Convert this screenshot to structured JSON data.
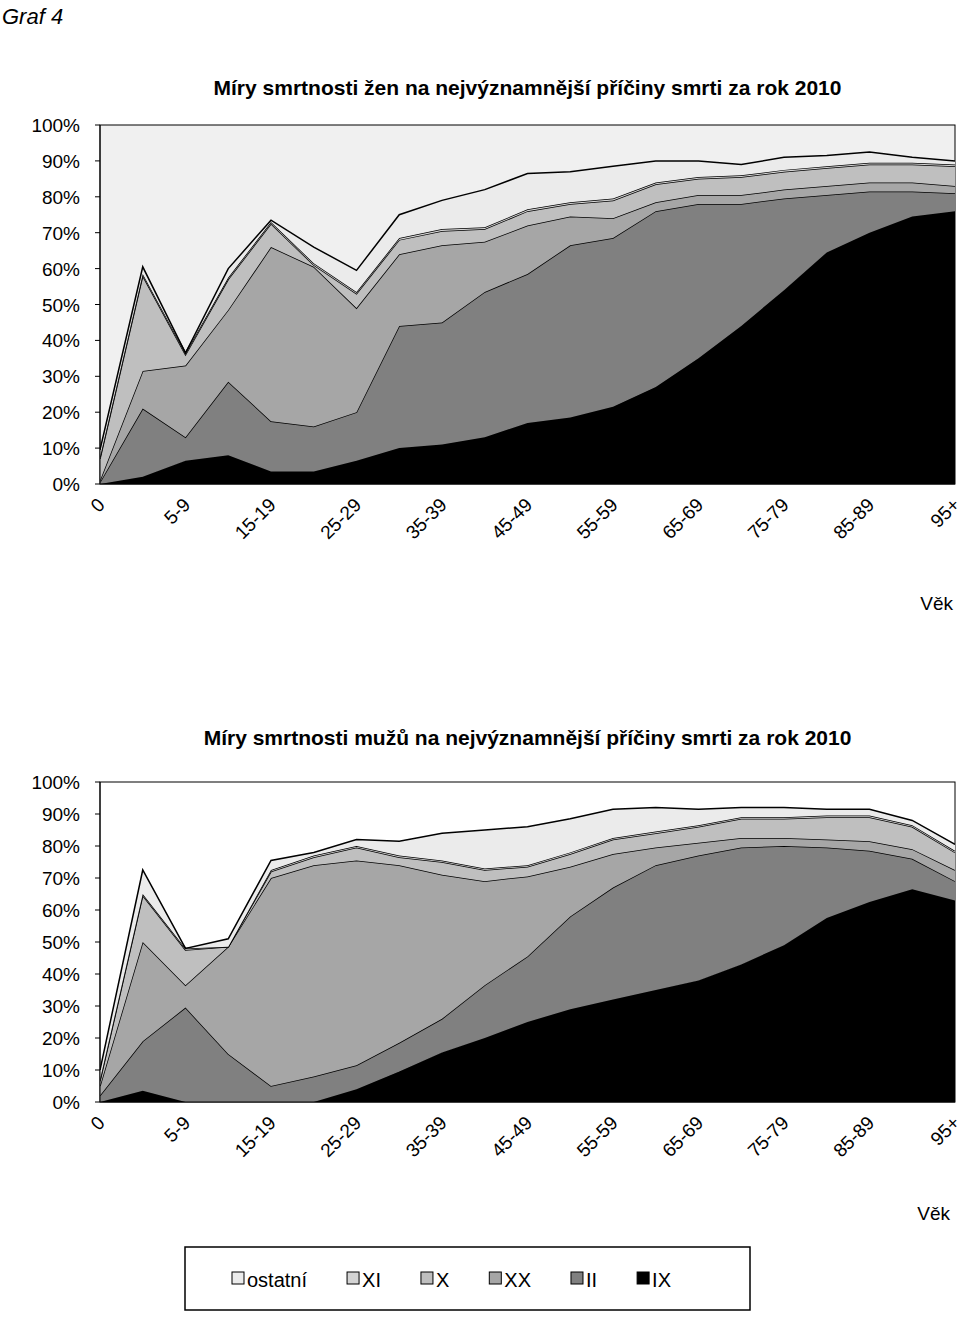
{
  "page_label": "Graf 4",
  "chart_data": [
    {
      "type": "area",
      "stacked": true,
      "title": "Míry smrtnosti  žen na nejvýznamnější  příčiny smrti  za rok 2010",
      "x_label": "Věk",
      "categories": [
        "0",
        null,
        "5-9",
        null,
        "15-19",
        null,
        "25-29",
        null,
        "35-39",
        null,
        "45-49",
        null,
        "55-59",
        null,
        "65-69",
        null,
        "75-79",
        null,
        "85-89",
        null,
        "95+"
      ],
      "series": [
        {
          "name": "IX",
          "color": "#000000",
          "values": [
            0,
            2,
            6.5,
            8,
            3.5,
            3.5,
            6.5,
            10,
            11,
            13,
            17,
            18.5,
            21.5,
            27,
            35,
            44,
            54,
            64.5,
            70,
            74.5,
            76
          ]
        },
        {
          "name": "II",
          "color": "#808080",
          "values": [
            0.5,
            19,
            6.5,
            20.5,
            14,
            12.5,
            13.5,
            34,
            34,
            40.5,
            41.5,
            48,
            47,
            49,
            43,
            34,
            25.5,
            16,
            11.5,
            7,
            5
          ]
        },
        {
          "name": "XX",
          "color": "#a6a6a6",
          "values": [
            0.5,
            10.5,
            20,
            20,
            48.5,
            44.5,
            29,
            20,
            21.5,
            14,
            13.5,
            8,
            5.5,
            2.5,
            2.5,
            2.5,
            2.5,
            2.5,
            2.5,
            2.5,
            2
          ]
        },
        {
          "name": "X",
          "color": "#bfbfbf",
          "values": [
            6,
            26.5,
            3,
            8.5,
            6.5,
            0.5,
            4,
            4,
            4,
            3.5,
            4,
            3.5,
            5,
            5,
            4.5,
            5,
            5,
            5,
            5,
            5,
            5.5
          ]
        },
        {
          "name": "XI",
          "color": "#d4d4d4",
          "values": [
            0.5,
            0.5,
            0.5,
            0.5,
            0.5,
            0.5,
            0.5,
            0.5,
            0.5,
            0.5,
            0.5,
            0.5,
            0.5,
            0.5,
            0.5,
            0.5,
            0.5,
            0.5,
            0.5,
            0.5,
            0.5
          ]
        },
        {
          "name": "ostatní",
          "color": "#ebebeb",
          "values": [
            2,
            2,
            0,
            2.5,
            0.5,
            4.5,
            6,
            6.5,
            8,
            10.5,
            10,
            8.5,
            9,
            6,
            4.5,
            3,
            3.5,
            3,
            3,
            1.5,
            1
          ]
        }
      ],
      "ylim": [
        0,
        100
      ],
      "yticks": [
        {
          "value": 0,
          "label": "0%"
        },
        {
          "value": 10,
          "label": "10%"
        },
        {
          "value": 20,
          "label": "20%"
        },
        {
          "value": 30,
          "label": "30%"
        },
        {
          "value": 40,
          "label": "40%"
        },
        {
          "value": 50,
          "label": "50%"
        },
        {
          "value": 60,
          "label": "60%"
        },
        {
          "value": 70,
          "label": "70%"
        },
        {
          "value": 80,
          "label": "80%"
        },
        {
          "value": 90,
          "label": "90%"
        },
        {
          "value": 100,
          "label": "100%"
        }
      ],
      "grid": false
    },
    {
      "type": "area",
      "stacked": true,
      "title": "Míry smrtnosti  mužů na nejvýznamnější  příčiny smrti  za rok 2010",
      "x_label": "Věk",
      "categories": [
        "0",
        null,
        "5-9",
        null,
        "15-19",
        null,
        "25-29",
        null,
        "35-39",
        null,
        "45-49",
        null,
        "55-59",
        null,
        "65-69",
        null,
        "75-79",
        null,
        "85-89",
        null,
        "95+"
      ],
      "series": [
        {
          "name": "IX",
          "color": "#000000",
          "values": [
            0,
            3.5,
            0,
            0,
            0,
            0,
            4,
            9.5,
            15.5,
            20,
            25,
            29,
            32,
            35,
            38,
            43,
            49,
            57.5,
            62.5,
            66.5,
            63
          ]
        },
        {
          "name": "II",
          "color": "#808080",
          "values": [
            2,
            15.5,
            29.5,
            15,
            5,
            8,
            7.5,
            9,
            10.5,
            16.5,
            20.5,
            29,
            35,
            39,
            39,
            36.5,
            31,
            22,
            16,
            9.5,
            6
          ]
        },
        {
          "name": "XX",
          "color": "#a6a6a6",
          "values": [
            3,
            31,
            7,
            33.5,
            65,
            66,
            64,
            55.5,
            45,
            32.5,
            25,
            15.5,
            10.5,
            5.5,
            4,
            3,
            2.5,
            2.5,
            3,
            3,
            3.5
          ]
        },
        {
          "name": "X",
          "color": "#bfbfbf",
          "values": [
            1.5,
            14.5,
            11,
            0,
            2,
            2.5,
            4,
            2.5,
            4,
            3.5,
            3,
            4,
            4.5,
            4.5,
            5,
            6,
            6,
            7,
            7.5,
            7,
            5.5
          ]
        },
        {
          "name": "XI",
          "color": "#d4d4d4",
          "values": [
            0.5,
            0.5,
            0.5,
            0,
            0.5,
            0.5,
            0.5,
            0.5,
            0.5,
            0.5,
            0.5,
            0.5,
            0.5,
            0.5,
            0.5,
            0.5,
            0.5,
            0.5,
            0.5,
            0.5,
            0.5
          ]
        },
        {
          "name": "ostatní",
          "color": "#ebebeb",
          "values": [
            3,
            7.5,
            0,
            2.5,
            3,
            1,
            2,
            4.5,
            8.5,
            12,
            12,
            10.5,
            9,
            7.5,
            5,
            3,
            3,
            2,
            2,
            1.5,
            2
          ]
        }
      ],
      "ylim": [
        0,
        100
      ],
      "yticks": [
        {
          "value": 0,
          "label": "0%"
        },
        {
          "value": 10,
          "label": "10%"
        },
        {
          "value": 20,
          "label": "20%"
        },
        {
          "value": 30,
          "label": "30%"
        },
        {
          "value": 40,
          "label": "40%"
        },
        {
          "value": 50,
          "label": "50%"
        },
        {
          "value": 60,
          "label": "60%"
        },
        {
          "value": 70,
          "label": "70%"
        },
        {
          "value": 80,
          "label": "80%"
        },
        {
          "value": 90,
          "label": "90%"
        },
        {
          "value": 100,
          "label": "100%"
        }
      ],
      "grid": false,
      "legend": "bottom"
    }
  ]
}
